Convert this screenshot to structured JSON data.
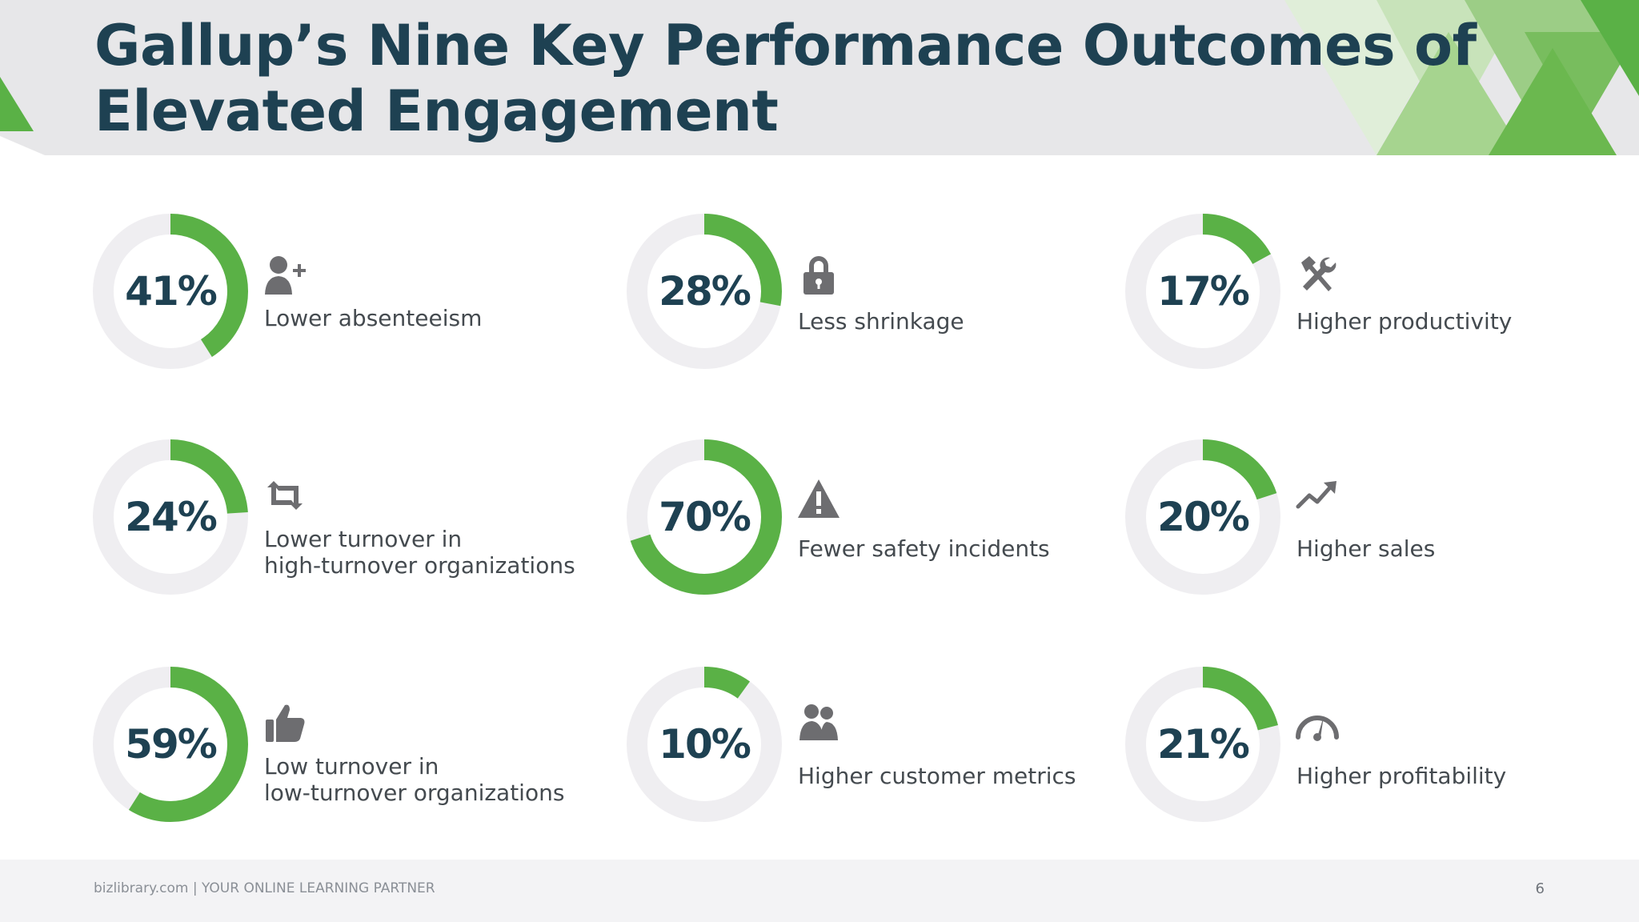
{
  "header": {
    "title": "Gallup’s Nine Key Performance Outcomes of Elevated Engagement"
  },
  "colors": {
    "accent_green": "#5ab146",
    "ring_track": "#efeef1",
    "title_navy": "#1e4152",
    "header_band": "#e7e7e9",
    "icon_gray": "#6d6d70"
  },
  "chart_data": {
    "type": "donut",
    "title": "Gallup’s Nine Key Performance Outcomes of Elevated Engagement",
    "max": 100,
    "items": [
      {
        "value": 41,
        "display": "41%",
        "icon": "user-add-icon",
        "label_lines": [
          "Lower absenteeism"
        ]
      },
      {
        "value": 28,
        "display": "28%",
        "icon": "padlock-icon",
        "label_lines": [
          "Less shrinkage"
        ]
      },
      {
        "value": 17,
        "display": "17%",
        "icon": "hammer-wrench-icon",
        "label_lines": [
          "Higher productivity"
        ]
      },
      {
        "value": 24,
        "display": "24%",
        "icon": "retweet-arrows-icon",
        "label_lines": [
          "Lower turnover in",
          "high-turnover organizations"
        ]
      },
      {
        "value": 70,
        "display": "70%",
        "icon": "warning-triangle-icon",
        "label_lines": [
          "Fewer safety incidents"
        ]
      },
      {
        "value": 20,
        "display": "20%",
        "icon": "trend-up-icon",
        "label_lines": [
          "Higher sales"
        ]
      },
      {
        "value": 59,
        "display": "59%",
        "icon": "thumbs-up-icon",
        "label_lines": [
          "Low turnover in",
          "low-turnover organizations"
        ]
      },
      {
        "value": 10,
        "display": "10%",
        "icon": "users-icon",
        "label_lines": [
          "Higher customer metrics"
        ]
      },
      {
        "value": 21,
        "display": "21%",
        "icon": "speedometer-icon",
        "label_lines": [
          "Higher profitability"
        ]
      }
    ]
  },
  "footer": {
    "brand": "bizlibrary.com | YOUR ONLINE LEARNING PARTNER",
    "page_number": "6"
  }
}
